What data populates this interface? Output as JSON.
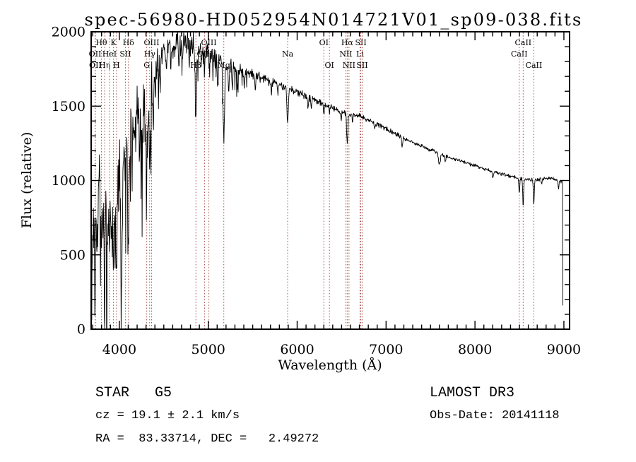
{
  "annotations": {
    "class_label": "STAR   G5",
    "cz": "cz = 19.1 ± 2.1 km/s",
    "radec": "RA =  83.33714, DEC =   2.49272",
    "survey": "LAMOST DR3",
    "obs_date": "Obs-Date: 20141118"
  },
  "chart_data": {
    "type": "line",
    "title": "spec-56980-HD052954N014721V01_sp09-038.fits",
    "xlabel": "Wavelength (Å)",
    "ylabel": "Flux (relative)",
    "xlim": [
      3683,
      9064
    ],
    "ylim": [
      0,
      2000
    ],
    "xticks": [
      4000,
      5000,
      6000,
      7000,
      8000,
      9000
    ],
    "yticks": [
      0,
      500,
      1000,
      1500,
      2000
    ],
    "minor_tick_step_x": 100,
    "minor_tick_step_y": 100,
    "grid": false,
    "legend": "none",
    "line_color": "#000000",
    "marker_color": "#a64d4d",
    "spectral_lines": [
      {
        "wavelength": 3727,
        "label": "OII",
        "row": 2
      },
      {
        "wavelength": 3730,
        "label": "OII",
        "row": 3
      },
      {
        "wavelength": 3798,
        "label": "Hθ",
        "row": 1
      },
      {
        "wavelength": 3835,
        "label": "Hη",
        "row": 3
      },
      {
        "wavelength": 3889,
        "label": "HeI",
        "row": 2
      },
      {
        "wavelength": 3934,
        "label": "K",
        "row": 1
      },
      {
        "wavelength": 3968,
        "label": "H",
        "row": 3
      },
      {
        "wavelength": 4068,
        "label": "SII",
        "row": 2
      },
      {
        "wavelength": 4102,
        "label": "Hδ",
        "row": 1
      },
      {
        "wavelength": 4308,
        "label": "G",
        "row": 3
      },
      {
        "wavelength": 4341,
        "label": "Hγ",
        "row": 2
      },
      {
        "wavelength": 4363,
        "label": "OIII",
        "row": 1
      },
      {
        "wavelength": 4861,
        "label": "Hβ",
        "row": 3
      },
      {
        "wavelength": 4959,
        "label": "OIII",
        "row": 2
      },
      {
        "wavelength": 5007,
        "label": "OIII",
        "row": 1
      },
      {
        "wavelength": 5175,
        "label": "Mg",
        "row": 3
      },
      {
        "wavelength": 5893,
        "label": "Na",
        "row": 2
      },
      {
        "wavelength": 6300,
        "label": "OI",
        "row": 1
      },
      {
        "wavelength": 6363,
        "label": "OI",
        "row": 3
      },
      {
        "wavelength": 6548,
        "label": "NII",
        "row": 2
      },
      {
        "wavelength": 6563,
        "label": "Hα",
        "row": 1
      },
      {
        "wavelength": 6583,
        "label": "NII",
        "row": 3
      },
      {
        "wavelength": 6707,
        "label": "Li",
        "row": 2
      },
      {
        "wavelength": 6716,
        "label": "SII",
        "row": 1
      },
      {
        "wavelength": 6731,
        "label": "SII",
        "row": 3
      },
      {
        "wavelength": 8498,
        "label": "CaII",
        "row": 2
      },
      {
        "wavelength": 8542,
        "label": "CaII",
        "row": 1
      },
      {
        "wavelength": 8662,
        "label": "CaII",
        "row": 3
      }
    ],
    "spectrum_model": {
      "x_start": 3690,
      "x_end": 8985,
      "end_drop_flux": 160,
      "start_flux": 60,
      "sample_step": 4,
      "seed": 1337,
      "envelope": [
        [
          3690,
          520
        ],
        [
          3710,
          700
        ],
        [
          3740,
          830
        ],
        [
          3780,
          860
        ],
        [
          3820,
          840
        ],
        [
          3860,
          800
        ],
        [
          3900,
          830
        ],
        [
          3940,
          860
        ],
        [
          3980,
          900
        ],
        [
          4010,
          1020
        ],
        [
          4050,
          1250
        ],
        [
          4090,
          1370
        ],
        [
          4130,
          1400
        ],
        [
          4170,
          1430
        ],
        [
          4210,
          1460
        ],
        [
          4250,
          1460
        ],
        [
          4290,
          1470
        ],
        [
          4330,
          1520
        ],
        [
          4370,
          1620
        ],
        [
          4410,
          1730
        ],
        [
          4450,
          1800
        ],
        [
          4490,
          1850
        ],
        [
          4530,
          1890
        ],
        [
          4570,
          1900
        ],
        [
          4610,
          1890
        ],
        [
          4650,
          1920
        ],
        [
          4700,
          1950
        ],
        [
          4750,
          1940
        ],
        [
          4800,
          1925
        ],
        [
          4850,
          1905
        ],
        [
          4900,
          1890
        ],
        [
          4950,
          1875
        ],
        [
          5000,
          1855
        ],
        [
          5050,
          1840
        ],
        [
          5100,
          1825
        ],
        [
          5150,
          1805
        ],
        [
          5200,
          1785
        ],
        [
          5250,
          1775
        ],
        [
          5300,
          1762
        ],
        [
          5350,
          1750
        ],
        [
          5400,
          1738
        ],
        [
          5450,
          1726
        ],
        [
          5500,
          1714
        ],
        [
          5550,
          1702
        ],
        [
          5600,
          1690
        ],
        [
          5650,
          1678
        ],
        [
          5700,
          1666
        ],
        [
          5750,
          1655
        ],
        [
          5800,
          1645
        ],
        [
          5850,
          1635
        ],
        [
          5900,
          1623
        ],
        [
          5950,
          1610
        ],
        [
          6000,
          1597
        ],
        [
          6050,
          1583
        ],
        [
          6100,
          1568
        ],
        [
          6150,
          1553
        ],
        [
          6200,
          1540
        ],
        [
          6250,
          1528
        ],
        [
          6300,
          1517
        ],
        [
          6350,
          1503
        ],
        [
          6400,
          1488
        ],
        [
          6450,
          1473
        ],
        [
          6500,
          1462
        ],
        [
          6550,
          1452
        ],
        [
          6600,
          1444
        ],
        [
          6650,
          1437
        ],
        [
          6700,
          1430
        ],
        [
          6750,
          1420
        ],
        [
          6800,
          1408
        ],
        [
          6850,
          1394
        ],
        [
          6900,
          1380
        ],
        [
          6950,
          1364
        ],
        [
          7000,
          1348
        ],
        [
          7050,
          1332
        ],
        [
          7100,
          1316
        ],
        [
          7150,
          1301
        ],
        [
          7200,
          1287
        ],
        [
          7250,
          1273
        ],
        [
          7300,
          1259
        ],
        [
          7350,
          1245
        ],
        [
          7400,
          1232
        ],
        [
          7450,
          1219
        ],
        [
          7500,
          1207
        ],
        [
          7550,
          1195
        ],
        [
          7600,
          1183
        ],
        [
          7650,
          1171
        ],
        [
          7700,
          1160
        ],
        [
          7750,
          1149
        ],
        [
          7800,
          1139
        ],
        [
          7850,
          1129
        ],
        [
          7900,
          1119
        ],
        [
          7950,
          1109
        ],
        [
          8000,
          1100
        ],
        [
          8050,
          1090
        ],
        [
          8100,
          1080
        ],
        [
          8150,
          1070
        ],
        [
          8200,
          1061
        ],
        [
          8250,
          1053
        ],
        [
          8300,
          1045
        ],
        [
          8350,
          1037
        ],
        [
          8400,
          1029
        ],
        [
          8450,
          1022
        ],
        [
          8500,
          1016
        ],
        [
          8550,
          1011
        ],
        [
          8600,
          1008
        ],
        [
          8650,
          1006
        ],
        [
          8700,
          1006
        ],
        [
          8750,
          1010
        ],
        [
          8800,
          1014
        ],
        [
          8850,
          1014
        ],
        [
          8900,
          1010
        ],
        [
          8950,
          1002
        ],
        [
          8985,
          990
        ]
      ],
      "absorption_dips": [
        [
          3727,
          180,
          5
        ],
        [
          3750,
          160,
          5
        ],
        [
          3798,
          260,
          6
        ],
        [
          3820,
          180,
          5
        ],
        [
          3835,
          280,
          6
        ],
        [
          3860,
          300,
          6
        ],
        [
          3889,
          340,
          6
        ],
        [
          3912,
          220,
          5
        ],
        [
          3934,
          480,
          7
        ],
        [
          3968,
          470,
          7
        ],
        [
          4026,
          800,
          8
        ],
        [
          4068,
          260,
          6
        ],
        [
          4102,
          980,
          8
        ],
        [
          4144,
          260,
          5
        ],
        [
          4180,
          200,
          5
        ],
        [
          4226,
          330,
          5
        ],
        [
          4260,
          200,
          5
        ],
        [
          4308,
          570,
          9
        ],
        [
          4341,
          450,
          7
        ],
        [
          4383,
          280,
          5
        ],
        [
          4405,
          220,
          5
        ],
        [
          4460,
          160,
          5
        ],
        [
          4530,
          180,
          5
        ],
        [
          4580,
          150,
          4
        ],
        [
          4668,
          170,
          4
        ],
        [
          4710,
          140,
          4
        ],
        [
          4786,
          160,
          4
        ],
        [
          4861,
          530,
          7
        ],
        [
          4920,
          180,
          4
        ],
        [
          4957,
          150,
          4
        ],
        [
          5015,
          130,
          4
        ],
        [
          5110,
          140,
          4
        ],
        [
          5175,
          510,
          9
        ],
        [
          5230,
          160,
          5
        ],
        [
          5270,
          140,
          5
        ],
        [
          5330,
          120,
          4
        ],
        [
          5405,
          160,
          4
        ],
        [
          5530,
          90,
          4
        ],
        [
          5710,
          90,
          4
        ],
        [
          5782,
          70,
          4
        ],
        [
          5893,
          240,
          7
        ],
        [
          6122,
          70,
          5
        ],
        [
          6160,
          60,
          4
        ],
        [
          6300,
          60,
          5
        ],
        [
          6363,
          50,
          4
        ],
        [
          6495,
          70,
          4
        ],
        [
          6563,
          200,
          7
        ],
        [
          6623,
          50,
          4
        ],
        [
          6870,
          45,
          5
        ],
        [
          7180,
          60,
          6
        ],
        [
          7600,
          75,
          10
        ],
        [
          7665,
          50,
          5
        ],
        [
          8200,
          45,
          6
        ],
        [
          8498,
          115,
          5
        ],
        [
          8542,
          190,
          5
        ],
        [
          8662,
          170,
          5
        ],
        [
          8750,
          40,
          4
        ],
        [
          8940,
          60,
          5
        ]
      ],
      "noise_profile": [
        [
          3690,
          270
        ],
        [
          3800,
          280
        ],
        [
          3900,
          270
        ],
        [
          4000,
          260
        ],
        [
          4100,
          250
        ],
        [
          4200,
          240
        ],
        [
          4300,
          220
        ],
        [
          4400,
          180
        ],
        [
          4500,
          140
        ],
        [
          4600,
          120
        ],
        [
          4700,
          110
        ],
        [
          4800,
          110
        ],
        [
          4900,
          110
        ],
        [
          5000,
          100
        ],
        [
          5100,
          95
        ],
        [
          5200,
          75
        ],
        [
          5300,
          60
        ],
        [
          5400,
          52
        ],
        [
          5500,
          45
        ],
        [
          5600,
          42
        ],
        [
          5700,
          40
        ],
        [
          5800,
          38
        ],
        [
          5900,
          35
        ],
        [
          6000,
          32
        ],
        [
          6100,
          30
        ],
        [
          6200,
          29
        ],
        [
          6300,
          28
        ],
        [
          6400,
          27
        ],
        [
          6500,
          26
        ],
        [
          6600,
          25
        ],
        [
          6700,
          24
        ],
        [
          6800,
          23
        ],
        [
          6900,
          22
        ],
        [
          7000,
          21
        ],
        [
          7200,
          19
        ],
        [
          7400,
          18
        ],
        [
          7600,
          17
        ],
        [
          7800,
          15
        ],
        [
          8000,
          14
        ],
        [
          8200,
          14
        ],
        [
          8400,
          15
        ],
        [
          8600,
          16
        ],
        [
          8800,
          14
        ],
        [
          8985,
          16
        ]
      ]
    }
  }
}
